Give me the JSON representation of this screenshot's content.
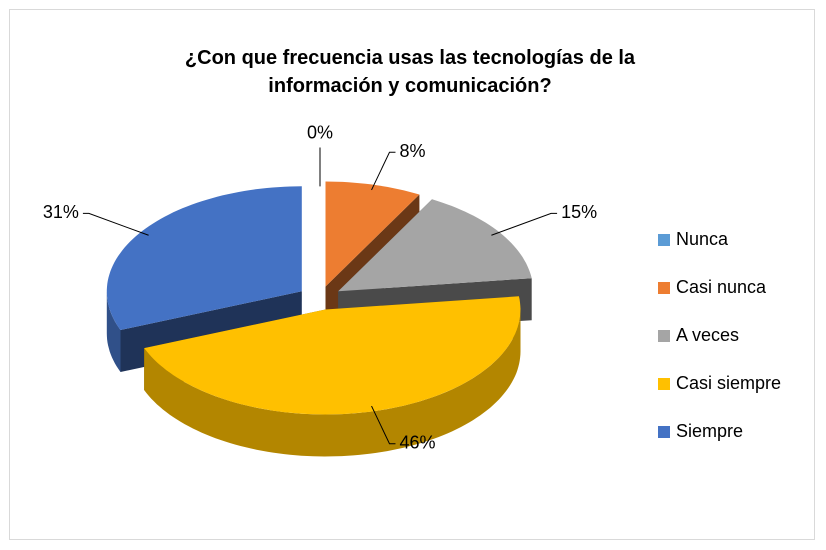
{
  "chart_data": {
    "type": "pie3d",
    "title": "¿Con que frecuencia usas las tecnologías de la información y comunicación?",
    "categories": [
      "Nunca",
      "Casi nunca",
      "A veces",
      "Casi siempre",
      "Siempre"
    ],
    "values": [
      0,
      8,
      15,
      46,
      31
    ],
    "value_labels": [
      "0%",
      "8%",
      "15%",
      "46%",
      "31%"
    ],
    "colors": [
      "#5b9bd5",
      "#ed7d31",
      "#a5a5a5",
      "#ffc000",
      "#4472c4"
    ],
    "legend": "right"
  }
}
